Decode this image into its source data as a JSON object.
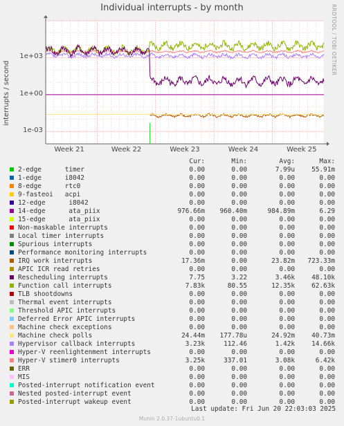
{
  "title": "Individual interrupts - by month",
  "side_text": "RRDTOOL / TOBI OETIKER",
  "footer": "Munin 2.0.37-1ubuntu0.1",
  "last_update": "Last update: Fri Jun 20 22:03:03 2025",
  "legend_headers": {
    "cur": "Cur:",
    "min": "Min:",
    "avg": "Avg:",
    "max": "Max:"
  },
  "chart_data": {
    "type": "line",
    "title": "Individual interrupts - by month",
    "ylabel": "interrupts / second",
    "y_scale": "log",
    "ylim": [
      0.0001,
      1000000
    ],
    "yticks": [
      "1e+03",
      "1e+00",
      "1e-03"
    ],
    "y_tick_values": [
      1000,
      1,
      0.001
    ],
    "xticks": [
      "Week 21",
      "Week 22",
      "Week 23",
      "Week 24",
      "Week 25"
    ],
    "grid": true,
    "series": [
      {
        "name": "2-edge      timer",
        "color": "#00cc00",
        "cur": "0.00",
        "min": "0.00",
        "avg": "7.99u",
        "max": "55.91m"
      },
      {
        "name": "1-edge      i8042",
        "color": "#0066b3",
        "cur": "0.00",
        "min": "0.00",
        "avg": "0.00",
        "max": "0.00"
      },
      {
        "name": "8-edge      rtc0",
        "color": "#ff8000",
        "cur": "0.00",
        "min": "0.00",
        "avg": "0.00",
        "max": "0.00"
      },
      {
        "name": "9-fasteoi   acpi",
        "color": "#ffcc00",
        "cur": "0.00",
        "min": "0.00",
        "avg": "0.00",
        "max": "0.00"
      },
      {
        "name": "12-edge      i8042",
        "color": "#330099",
        "cur": "0.00",
        "min": "0.00",
        "avg": "0.00",
        "max": "0.00"
      },
      {
        "name": "14-edge      ata_piix",
        "color": "#990099",
        "cur": "976.66m",
        "min": "960.40m",
        "avg": "984.89m",
        "max": "6.29"
      },
      {
        "name": "15-edge      ata_piix",
        "color": "#ccff00",
        "cur": "0.00",
        "min": "0.00",
        "avg": "0.00",
        "max": "0.00"
      },
      {
        "name": "Non-maskable interrupts",
        "color": "#ff0000",
        "cur": "0.00",
        "min": "0.00",
        "avg": "0.00",
        "max": "0.00"
      },
      {
        "name": "Local timer interrupts",
        "color": "#808080",
        "cur": "0.00",
        "min": "0.00",
        "avg": "0.00",
        "max": "0.00"
      },
      {
        "name": "Spurious interrupts",
        "color": "#008f00",
        "cur": "0.00",
        "min": "0.00",
        "avg": "0.00",
        "max": "0.00"
      },
      {
        "name": "Performance monitoring interrupts",
        "color": "#00487d",
        "cur": "0.00",
        "min": "0.00",
        "avg": "0.00",
        "max": "0.00"
      },
      {
        "name": "IRQ work interrupts",
        "color": "#b35a00",
        "cur": "17.36m",
        "min": "0.00",
        "avg": "23.82m",
        "max": "723.33m"
      },
      {
        "name": "APIC ICR read retries",
        "color": "#b38f00",
        "cur": "0.00",
        "min": "0.00",
        "avg": "0.00",
        "max": "0.00"
      },
      {
        "name": "Rescheduling interrupts",
        "color": "#6b006b",
        "cur": "7.75",
        "min": "3.22",
        "avg": "3.46k",
        "max": "48.10k"
      },
      {
        "name": "Function call interrupts",
        "color": "#8fb300",
        "cur": "7.83k",
        "min": "80.55",
        "avg": "12.35k",
        "max": "62.63k"
      },
      {
        "name": "TLB shootdowns",
        "color": "#b30000",
        "cur": "0.00",
        "min": "0.00",
        "avg": "0.00",
        "max": "0.00"
      },
      {
        "name": "Thermal event interrupts",
        "color": "#bebebe",
        "cur": "0.00",
        "min": "0.00",
        "avg": "0.00",
        "max": "0.00"
      },
      {
        "name": "Threshold APIC interrupts",
        "color": "#80ff80",
        "cur": "0.00",
        "min": "0.00",
        "avg": "0.00",
        "max": "0.00"
      },
      {
        "name": "Deferred Error APIC interrupts",
        "color": "#80c9ff",
        "cur": "0.00",
        "min": "0.00",
        "avg": "0.00",
        "max": "0.00"
      },
      {
        "name": "Machine check exceptions",
        "color": "#ffc080",
        "cur": "0.00",
        "min": "0.00",
        "avg": "0.00",
        "max": "0.00"
      },
      {
        "name": "Machine check polls",
        "color": "#ffe680",
        "cur": "24.44m",
        "min": "177.78u",
        "avg": "24.92m",
        "max": "40.73m"
      },
      {
        "name": "Hypervisor callback interrupts",
        "color": "#aa80ff",
        "cur": "3.23k",
        "min": "112.46",
        "avg": "1.42k",
        "max": "14.66k"
      },
      {
        "name": "Hyper-V reenlightenment interrupts",
        "color": "#ee00cc",
        "cur": "0.00",
        "min": "0.00",
        "avg": "0.00",
        "max": "0.00"
      },
      {
        "name": "Hyper-V stimer0 interrupts",
        "color": "#ff8080",
        "cur": "3.25k",
        "min": "337.01",
        "avg": "3.08k",
        "max": "6.42k"
      },
      {
        "name": "ERR",
        "color": "#666600",
        "cur": "0.00",
        "min": "0.00",
        "avg": "0.00",
        "max": "0.00"
      },
      {
        "name": "MIS",
        "color": "#ffbfff",
        "cur": "0.00",
        "min": "0.00",
        "avg": "0.00",
        "max": "0.00"
      },
      {
        "name": "Posted-interrupt notification event",
        "color": "#00ffcc",
        "cur": "0.00",
        "min": "0.00",
        "avg": "0.00",
        "max": "0.00"
      },
      {
        "name": "Nested posted-interrupt event",
        "color": "#cc6699",
        "cur": "0.00",
        "min": "0.00",
        "avg": "0.00",
        "max": "0.00"
      },
      {
        "name": "Posted-interrupt wakeup event",
        "color": "#999900",
        "cur": "0.00",
        "min": "0.00",
        "avg": "0.00",
        "max": "0.00"
      }
    ]
  }
}
